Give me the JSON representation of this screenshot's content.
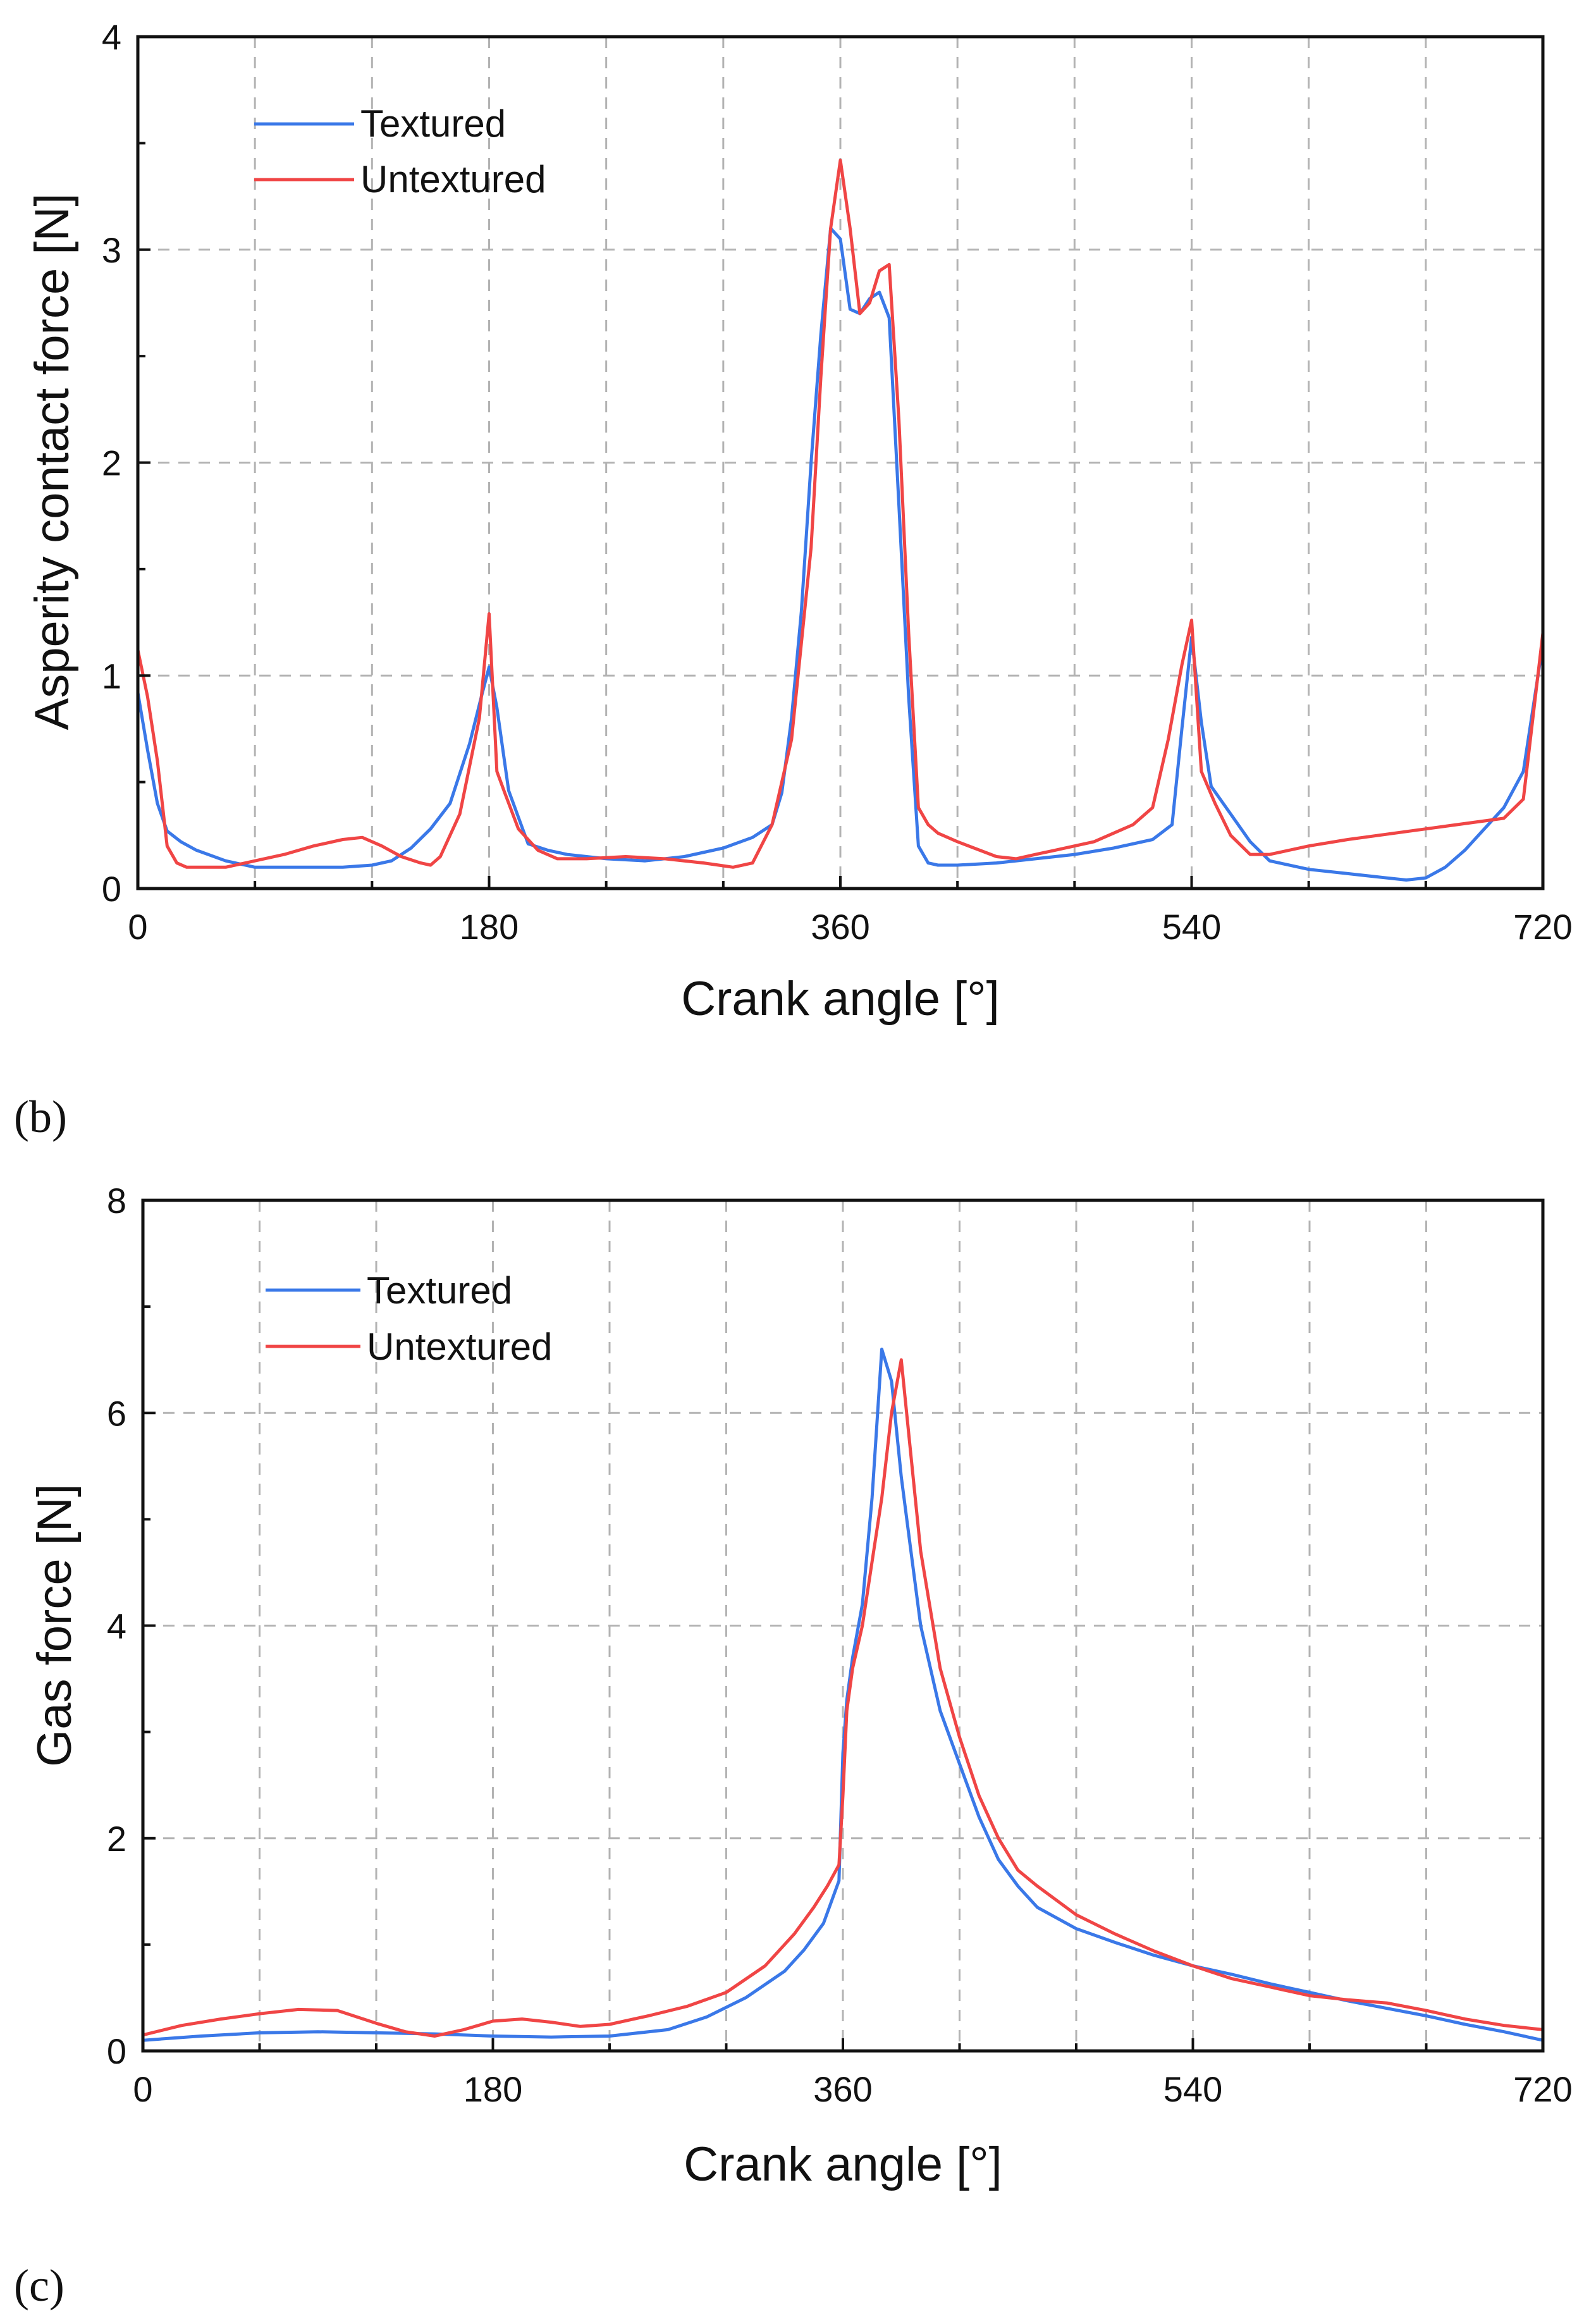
{
  "chart_data": [
    {
      "type": "line",
      "panel_label": "(b)",
      "title": "",
      "xlabel": "Crank angle [°]",
      "ylabel": "Asperity contact force [N]",
      "xlim": [
        0,
        720
      ],
      "ylim": [
        0,
        4
      ],
      "xticks": [
        0,
        180,
        360,
        540,
        720
      ],
      "yticks": [
        0,
        1,
        2,
        3,
        4
      ],
      "grid": true,
      "legend_position": "top-left",
      "series": [
        {
          "name": "Textured",
          "color": "#3a78e8",
          "x": [
            0,
            5,
            10,
            15,
            22,
            30,
            45,
            60,
            75,
            90,
            105,
            120,
            130,
            140,
            150,
            160,
            170,
            176,
            180,
            184,
            190,
            200,
            210,
            220,
            240,
            260,
            280,
            300,
            315,
            325,
            330,
            335,
            340,
            345,
            350,
            355,
            360,
            365,
            370,
            375,
            380,
            385,
            390,
            395,
            400,
            405,
            410,
            420,
            440,
            460,
            480,
            500,
            520,
            530,
            535,
            540,
            545,
            550,
            560,
            570,
            580,
            600,
            620,
            640,
            650,
            660,
            670,
            680,
            690,
            700,
            710,
            720
          ],
          "y": [
            0.92,
            0.65,
            0.4,
            0.27,
            0.22,
            0.18,
            0.13,
            0.1,
            0.1,
            0.1,
            0.1,
            0.11,
            0.13,
            0.19,
            0.28,
            0.4,
            0.68,
            0.9,
            1.04,
            0.85,
            0.46,
            0.21,
            0.18,
            0.16,
            0.14,
            0.13,
            0.15,
            0.19,
            0.24,
            0.3,
            0.45,
            0.8,
            1.3,
            2.0,
            2.6,
            3.1,
            3.05,
            2.72,
            2.7,
            2.77,
            2.8,
            2.68,
            1.8,
            0.9,
            0.2,
            0.12,
            0.11,
            0.11,
            0.12,
            0.14,
            0.16,
            0.19,
            0.23,
            0.3,
            0.75,
            1.18,
            0.78,
            0.48,
            0.35,
            0.22,
            0.13,
            0.09,
            0.07,
            0.05,
            0.04,
            0.05,
            0.1,
            0.18,
            0.28,
            0.38,
            0.55,
            1.15
          ]
        },
        {
          "name": "Untextured",
          "color": "#f04545",
          "x": [
            0,
            5,
            10,
            15,
            20,
            25,
            35,
            45,
            60,
            75,
            90,
            105,
            115,
            125,
            135,
            145,
            150,
            155,
            165,
            175,
            180,
            184,
            188,
            195,
            205,
            215,
            230,
            250,
            270,
            290,
            305,
            315,
            325,
            335,
            345,
            350,
            355,
            360,
            365,
            370,
            375,
            380,
            385,
            390,
            395,
            400,
            405,
            410,
            420,
            440,
            450,
            460,
            470,
            490,
            510,
            520,
            528,
            535,
            540,
            545,
            552,
            560,
            570,
            580,
            600,
            620,
            660,
            700,
            710,
            720
          ],
          "y": [
            1.12,
            0.9,
            0.6,
            0.2,
            0.12,
            0.1,
            0.1,
            0.1,
            0.13,
            0.16,
            0.2,
            0.23,
            0.24,
            0.2,
            0.15,
            0.12,
            0.11,
            0.15,
            0.35,
            0.8,
            1.29,
            0.55,
            0.45,
            0.28,
            0.18,
            0.14,
            0.14,
            0.15,
            0.14,
            0.12,
            0.1,
            0.12,
            0.3,
            0.7,
            1.6,
            2.4,
            3.1,
            3.42,
            3.1,
            2.7,
            2.75,
            2.9,
            2.93,
            2.2,
            1.2,
            0.38,
            0.3,
            0.26,
            0.22,
            0.15,
            0.14,
            0.16,
            0.18,
            0.22,
            0.3,
            0.38,
            0.7,
            1.05,
            1.26,
            0.55,
            0.4,
            0.25,
            0.16,
            0.16,
            0.2,
            0.23,
            0.28,
            0.33,
            0.42,
            1.2
          ]
        }
      ]
    },
    {
      "type": "line",
      "panel_label": "(c)",
      "title": "",
      "xlabel": "Crank angle [°]",
      "ylabel": "Gas force [N]",
      "xlim": [
        0,
        720
      ],
      "ylim": [
        0,
        8
      ],
      "xticks": [
        0,
        180,
        360,
        540,
        720
      ],
      "yticks": [
        0,
        2,
        4,
        6,
        8
      ],
      "grid": true,
      "legend_position": "top-left",
      "series": [
        {
          "name": "Textured",
          "color": "#3a78e8",
          "x": [
            0,
            30,
            60,
            90,
            120,
            150,
            180,
            210,
            240,
            270,
            290,
            310,
            330,
            340,
            350,
            355,
            358,
            360,
            362,
            365,
            370,
            375,
            380,
            385,
            390,
            395,
            400,
            410,
            420,
            430,
            440,
            450,
            460,
            480,
            500,
            520,
            540,
            560,
            580,
            600,
            620,
            640,
            660,
            680,
            700,
            720
          ],
          "y": [
            0.1,
            0.14,
            0.17,
            0.18,
            0.17,
            0.16,
            0.14,
            0.13,
            0.14,
            0.2,
            0.32,
            0.5,
            0.75,
            0.95,
            1.2,
            1.45,
            1.6,
            2.8,
            3.3,
            3.7,
            4.2,
            5.2,
            6.6,
            6.3,
            5.4,
            4.7,
            4.0,
            3.2,
            2.7,
            2.2,
            1.8,
            1.55,
            1.35,
            1.15,
            1.02,
            0.9,
            0.8,
            0.72,
            0.63,
            0.55,
            0.47,
            0.4,
            0.33,
            0.25,
            0.18,
            0.1
          ]
        },
        {
          "name": "Untextured",
          "color": "#f04545",
          "x": [
            0,
            20,
            40,
            60,
            80,
            100,
            120,
            135,
            150,
            165,
            180,
            195,
            210,
            225,
            240,
            260,
            280,
            300,
            320,
            335,
            345,
            352,
            358,
            360,
            362,
            365,
            370,
            375,
            380,
            385,
            390,
            395,
            400,
            410,
            420,
            430,
            440,
            450,
            460,
            480,
            500,
            520,
            540,
            560,
            580,
            600,
            620,
            640,
            660,
            680,
            700,
            720
          ],
          "y": [
            0.15,
            0.24,
            0.3,
            0.35,
            0.39,
            0.38,
            0.26,
            0.18,
            0.14,
            0.2,
            0.28,
            0.3,
            0.27,
            0.23,
            0.25,
            0.33,
            0.42,
            0.55,
            0.8,
            1.1,
            1.35,
            1.55,
            1.75,
            2.4,
            3.2,
            3.6,
            4.0,
            4.6,
            5.2,
            6.0,
            6.5,
            5.6,
            4.7,
            3.6,
            2.95,
            2.4,
            2.0,
            1.7,
            1.55,
            1.28,
            1.1,
            0.94,
            0.8,
            0.68,
            0.6,
            0.52,
            0.48,
            0.45,
            0.38,
            0.3,
            0.24,
            0.2
          ]
        }
      ]
    }
  ]
}
